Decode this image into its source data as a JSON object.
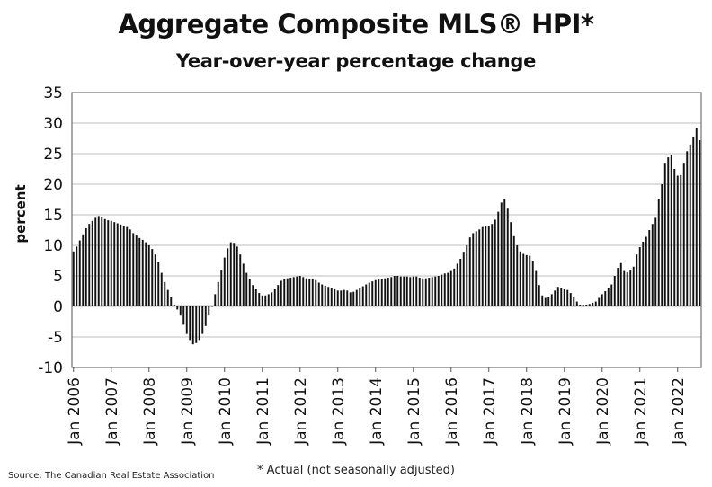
{
  "chart_data": {
    "type": "bar",
    "title": "Aggregate Composite MLS® HPI*",
    "subtitle": "Year-over-year percentage change",
    "ylabel": "percent",
    "xlabel": "",
    "ylim": [
      -10,
      35
    ],
    "yticks": [
      35,
      30,
      25,
      20,
      15,
      10,
      5,
      0,
      -5,
      -10
    ],
    "grid": true,
    "legend": "none",
    "bar_color": "#111111",
    "start_month": "Jan 2006",
    "end_month": "Feb 2022",
    "x_tick_labels": [
      "Jan 2006",
      "Jan 2007",
      "Jan 2008",
      "Jan 2009",
      "Jan 2010",
      "Jan 2011",
      "Jan 2012",
      "Jan 2013",
      "Jan 2014",
      "Jan 2015",
      "Jan 2016",
      "Jan 2017",
      "Jan 2018",
      "Jan 2019",
      "Jan 2020",
      "Jan 2021",
      "Jan 2022"
    ],
    "values": [
      9.0,
      9.8,
      10.8,
      11.8,
      12.8,
      13.5,
      14.0,
      14.5,
      14.8,
      14.6,
      14.3,
      14.1,
      14.0,
      13.8,
      13.6,
      13.4,
      13.2,
      13.0,
      12.6,
      12.0,
      11.6,
      11.2,
      10.9,
      10.5,
      10.0,
      9.4,
      8.5,
      7.2,
      5.5,
      4.0,
      2.7,
      1.5,
      0.3,
      -0.5,
      -1.5,
      -3.0,
      -4.5,
      -5.5,
      -6.2,
      -6.0,
      -5.5,
      -4.5,
      -3.2,
      -1.5,
      0.0,
      2.0,
      4.0,
      6.0,
      8.0,
      9.5,
      10.5,
      10.4,
      9.8,
      8.5,
      7.0,
      5.5,
      4.5,
      3.5,
      2.8,
      2.2,
      1.8,
      1.8,
      2.0,
      2.3,
      2.8,
      3.5,
      4.2,
      4.5,
      4.6,
      4.7,
      4.8,
      4.9,
      5.0,
      4.8,
      4.6,
      4.5,
      4.5,
      4.3,
      3.9,
      3.6,
      3.4,
      3.2,
      3.0,
      2.8,
      2.6,
      2.6,
      2.7,
      2.6,
      2.3,
      2.4,
      2.7,
      3.0,
      3.3,
      3.6,
      3.9,
      4.1,
      4.3,
      4.4,
      4.5,
      4.6,
      4.7,
      4.8,
      5.0,
      5.0,
      4.9,
      4.9,
      4.9,
      4.8,
      4.9,
      4.9,
      4.7,
      4.6,
      4.6,
      4.7,
      4.8,
      4.9,
      5.0,
      5.2,
      5.4,
      5.5,
      5.8,
      6.2,
      7.0,
      7.8,
      8.8,
      10.0,
      11.3,
      12.0,
      12.3,
      12.6,
      13.0,
      13.2,
      13.2,
      13.5,
      14.2,
      15.5,
      17.0,
      17.6,
      16.0,
      13.8,
      11.5,
      10.0,
      9.0,
      8.6,
      8.4,
      8.3,
      7.5,
      5.8,
      3.5,
      1.8,
      1.4,
      1.5,
      2.0,
      2.6,
      3.2,
      3.0,
      2.8,
      2.7,
      2.2,
      1.5,
      0.8,
      0.3,
      0.3,
      0.2,
      0.4,
      0.6,
      0.8,
      1.4,
      2.0,
      2.5,
      3.0,
      3.6,
      5.0,
      6.3,
      7.1,
      5.8,
      5.6,
      6.0,
      6.5,
      8.5,
      9.7,
      10.6,
      11.4,
      12.5,
      13.5,
      14.5,
      17.5,
      20.0,
      23.5,
      24.4,
      24.8,
      22.5,
      21.4,
      21.5,
      23.5,
      25.4,
      26.5,
      27.8,
      29.2,
      27.2
    ]
  },
  "footnote": "* Actual (not seasonally adjusted)",
  "source": "Source: The Canadian Real Estate Association"
}
